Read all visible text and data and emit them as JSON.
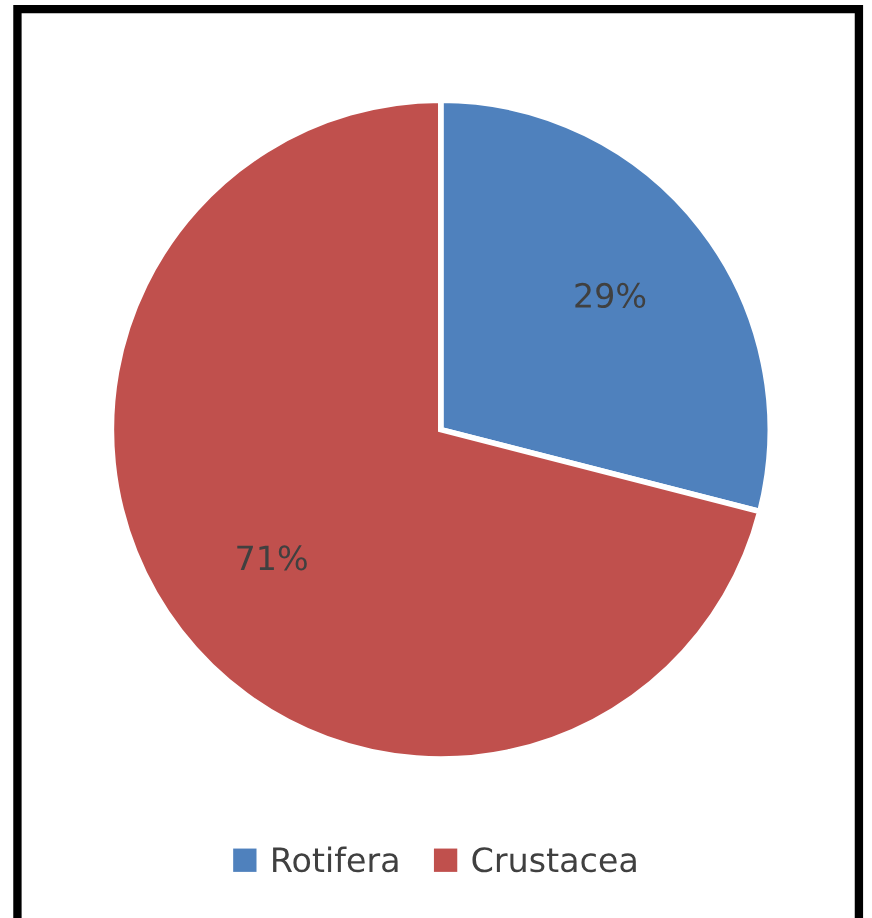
{
  "chart_data": {
    "type": "pie",
    "categories": [
      "Rotifera",
      "Crustacea"
    ],
    "values": [
      29,
      71
    ],
    "colors": [
      "#4f81bd",
      "#c0504d"
    ],
    "value_labels": [
      "29%",
      "71%"
    ],
    "legend": "bottom"
  }
}
